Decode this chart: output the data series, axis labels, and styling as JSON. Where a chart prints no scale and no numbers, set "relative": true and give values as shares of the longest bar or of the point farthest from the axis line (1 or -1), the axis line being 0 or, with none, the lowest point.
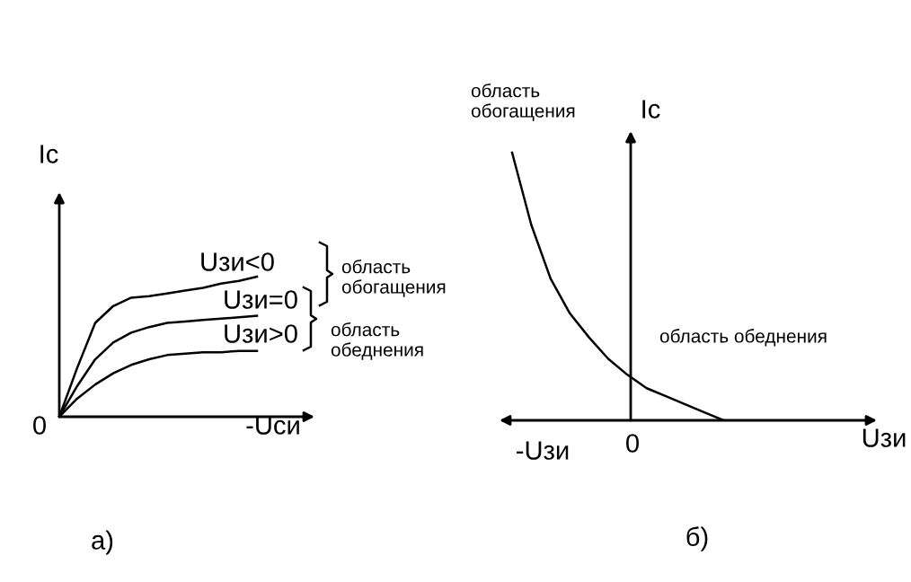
{
  "chart_data": [
    {
      "type": "line",
      "relative": true,
      "xlabel": "-Uси",
      "ylabel": "Ic",
      "categories": [
        null,
        null,
        null,
        null,
        null,
        null,
        null,
        null,
        null,
        null,
        null,
        null
      ],
      "legend": "right",
      "series": [
        {
          "name": "Uзи<0",
          "color": "#000000",
          "values": [
            0,
            0.35,
            0.67,
            0.79,
            0.85,
            0.86,
            0.88,
            0.9,
            0.92,
            0.95,
            0.97,
            1.0
          ]
        },
        {
          "name": "Uзи=0",
          "color": "#000000",
          "values": [
            0,
            0.22,
            0.41,
            0.53,
            0.6,
            0.64,
            0.67,
            0.68,
            0.69,
            0.7,
            0.71,
            0.72
          ]
        },
        {
          "name": "Uзи>0",
          "color": "#000000",
          "values": [
            0,
            0.13,
            0.23,
            0.31,
            0.37,
            0.41,
            0.44,
            0.45,
            0.46,
            0.46,
            0.47,
            0.47
          ]
        }
      ],
      "annotations": [
        "0",
        "область обогащения",
        "область обеднения",
        "а)"
      ]
    },
    {
      "type": "line",
      "relative": true,
      "xlabel": "Uзи",
      "ylabel": "Ic",
      "categories": [
        null,
        null,
        null,
        null,
        null,
        null,
        null,
        null,
        null,
        null,
        null,
        null
      ],
      "series": [
        {
          "color": "#000000",
          "values": [
            1.0,
            0.73,
            0.53,
            0.4,
            0.31,
            0.23,
            0.17,
            0.12,
            0.09,
            0.06,
            0.03,
            0
          ]
        }
      ],
      "annotations": [
        "-Uзи",
        "0",
        "область обогащения",
        "область обеднения",
        "б)"
      ]
    }
  ]
}
